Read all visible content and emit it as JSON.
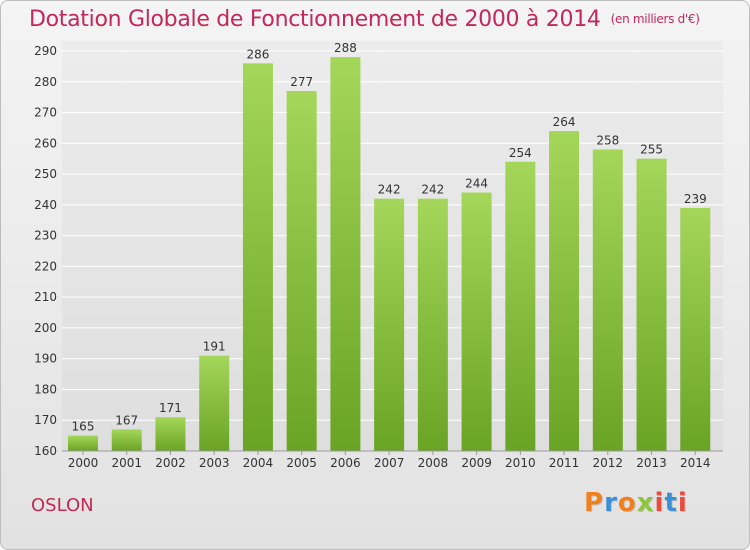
{
  "header": {
    "title": "Dotation Globale de Fonctionnement de 2000 à 2014",
    "unit": "(en milliers d'€)"
  },
  "footer": {
    "commune": "OSLON",
    "logo_text": "Proxiti"
  },
  "colors": {
    "bar_light": "#a4d65a",
    "bar_dark": "#6aa424",
    "title": "#c4285a",
    "grid": "#ffffff"
  },
  "chart_data": {
    "type": "bar",
    "title": "Dotation Globale de Fonctionnement de 2000 à 2014",
    "subtitle": "(en milliers d'€)",
    "xlabel": "",
    "ylabel": "",
    "categories": [
      "2000",
      "2001",
      "2002",
      "2003",
      "2004",
      "2005",
      "2006",
      "2007",
      "2008",
      "2009",
      "2010",
      "2011",
      "2012",
      "2013",
      "2014"
    ],
    "values": [
      165,
      167,
      171,
      191,
      286,
      277,
      288,
      242,
      242,
      244,
      254,
      264,
      258,
      255,
      239
    ],
    "ylim": [
      160,
      290
    ],
    "yticks": [
      160,
      170,
      180,
      190,
      200,
      210,
      220,
      230,
      240,
      250,
      260,
      270,
      280,
      290
    ],
    "grid": true,
    "data_labels": true
  }
}
